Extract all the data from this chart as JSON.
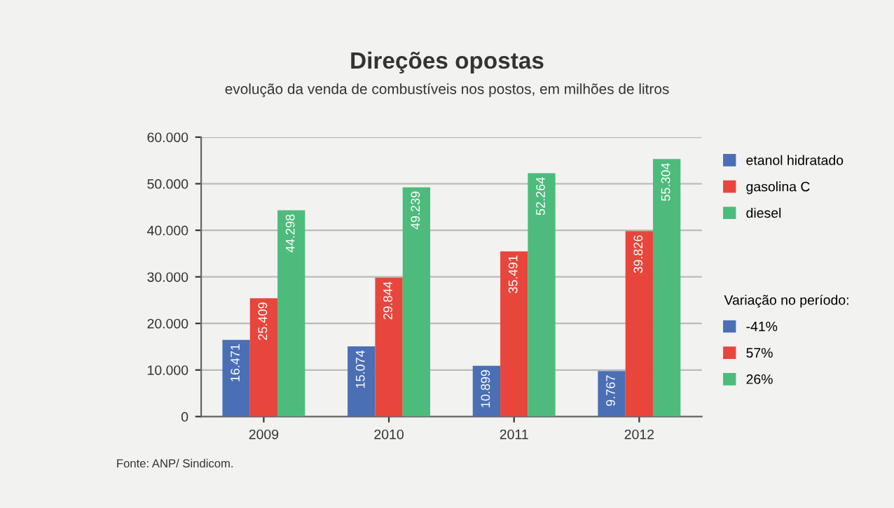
{
  "chart_data": {
    "type": "bar",
    "title": "Direções opostas",
    "subtitle": "evolução da venda de combustíveis nos postos, em milhões de litros",
    "categories": [
      "2009",
      "2010",
      "2011",
      "2012"
    ],
    "series": [
      {
        "name": "etanol hidratado",
        "color": "#4a6fb5",
        "values": [
          16471,
          15074,
          10899,
          9767
        ],
        "value_labels": [
          "16.471",
          "15.074",
          "10.899",
          "9.767"
        ]
      },
      {
        "name": "gasolina C",
        "color": "#e8463c",
        "values": [
          25409,
          29844,
          35491,
          39826
        ],
        "value_labels": [
          "25.409",
          "29.844",
          "35.491",
          "39.826"
        ]
      },
      {
        "name": "diesel",
        "color": "#4dbb7c",
        "values": [
          44298,
          49239,
          52264,
          55304
        ],
        "value_labels": [
          "44.298",
          "49.239",
          "52.264",
          "55.304"
        ]
      }
    ],
    "ylim": [
      0,
      60000
    ],
    "yticks": [
      {
        "value": 0,
        "label": "0"
      },
      {
        "value": 10000,
        "label": "10.000"
      },
      {
        "value": 20000,
        "label": "20.000"
      },
      {
        "value": 30000,
        "label": "30.000"
      },
      {
        "value": 40000,
        "label": "40.000"
      },
      {
        "value": 50000,
        "label": "50.000"
      },
      {
        "value": 60000,
        "label": "60.000"
      }
    ],
    "grid": "y",
    "legend": "right",
    "annotations": [
      "Variação no período:",
      "-41%",
      "57%",
      "26%",
      "Fonte: ANP/ Sindicom."
    ]
  }
}
